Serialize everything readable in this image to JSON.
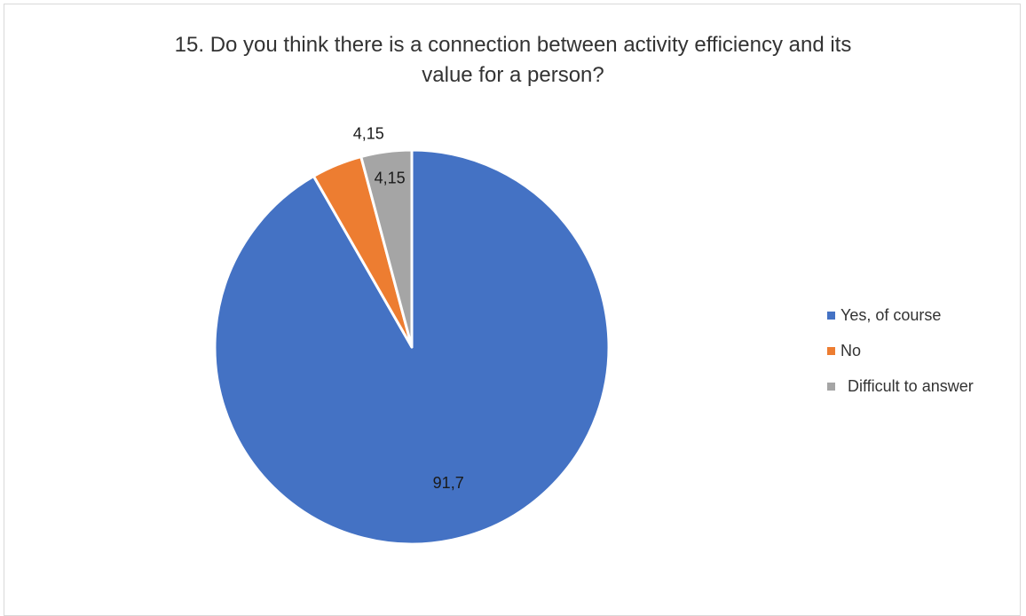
{
  "chart_data": {
    "type": "pie",
    "title": "15. Do you think there is a connection between activity efficiency and its value for a person?",
    "categories": [
      "Yes, of course",
      "No",
      "Difficult to answer"
    ],
    "values": [
      91.7,
      4.15,
      4.15
    ],
    "value_labels": [
      "91,7",
      "4,15",
      "4,15"
    ],
    "colors": [
      "#4472C4",
      "#ED7D31",
      "#A5A5A5"
    ],
    "start_angle_deg": 0,
    "direction": "clockwise",
    "legend_position": "right"
  }
}
